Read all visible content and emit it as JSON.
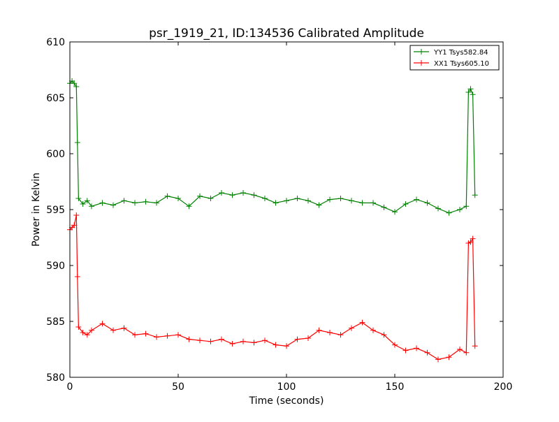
{
  "chart_data": {
    "type": "line",
    "title": "psr_1919_21, ID:134536 Calibrated Amplitude",
    "xlabel": "Time (seconds)",
    "ylabel": "Power in Kelvin",
    "xlim": [
      0,
      200
    ],
    "ylim": [
      580,
      610
    ],
    "xticks": [
      0,
      50,
      100,
      150,
      200
    ],
    "yticks": [
      580,
      585,
      590,
      595,
      600,
      605,
      610
    ],
    "grid": false,
    "legend_position": "upper right",
    "marker": "+",
    "series": [
      {
        "name": "YY1 Tsys582.84",
        "color": "#008000",
        "x": [
          0,
          1,
          2,
          3,
          3.5,
          4,
          6,
          8,
          10,
          15,
          20,
          25,
          30,
          35,
          40,
          45,
          50,
          55,
          60,
          65,
          70,
          75,
          80,
          85,
          90,
          95,
          100,
          105,
          110,
          115,
          120,
          125,
          130,
          135,
          140,
          145,
          150,
          155,
          160,
          165,
          170,
          175,
          180,
          183,
          184,
          185,
          186,
          187
        ],
        "y": [
          606.3,
          606.5,
          606.3,
          606.0,
          601.0,
          596.0,
          595.5,
          595.8,
          595.3,
          595.6,
          595.4,
          595.8,
          595.6,
          595.7,
          595.6,
          596.2,
          596.0,
          595.3,
          596.2,
          596.0,
          596.5,
          596.3,
          596.5,
          596.3,
          596.0,
          595.6,
          595.8,
          596.0,
          595.8,
          595.4,
          595.9,
          596.0,
          595.8,
          595.6,
          595.6,
          595.2,
          594.8,
          595.5,
          595.9,
          595.6,
          595.1,
          594.7,
          595.0,
          595.3,
          605.5,
          605.8,
          605.3,
          596.3
        ]
      },
      {
        "name": "XX1 Tsys605.10",
        "color": "#ff0000",
        "x": [
          0,
          1,
          2,
          3,
          3.5,
          4,
          6,
          8,
          10,
          15,
          20,
          25,
          30,
          35,
          40,
          45,
          50,
          55,
          60,
          65,
          70,
          75,
          80,
          85,
          90,
          95,
          100,
          105,
          110,
          115,
          120,
          125,
          130,
          135,
          140,
          145,
          150,
          155,
          160,
          165,
          170,
          175,
          180,
          183,
          184,
          185,
          186,
          187
        ],
        "y": [
          593.2,
          593.4,
          593.6,
          594.5,
          589.0,
          584.5,
          584.0,
          583.8,
          584.2,
          584.8,
          584.2,
          584.4,
          583.8,
          583.9,
          583.6,
          583.7,
          583.8,
          583.4,
          583.3,
          583.2,
          583.4,
          583.0,
          583.2,
          583.1,
          583.3,
          582.9,
          582.8,
          583.4,
          583.5,
          584.2,
          584.0,
          583.8,
          584.4,
          584.9,
          584.2,
          583.8,
          582.9,
          582.4,
          582.6,
          582.2,
          581.6,
          581.8,
          582.5,
          582.2,
          592.0,
          592.1,
          592.4,
          582.8
        ]
      }
    ]
  }
}
